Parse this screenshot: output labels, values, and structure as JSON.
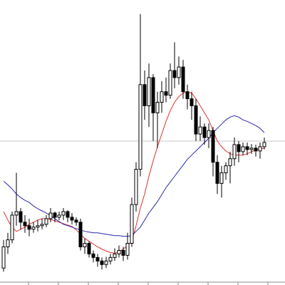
{
  "chart_data": {
    "type": "candlestick",
    "ylim": [
      0,
      400
    ],
    "hline": 200,
    "hline_color": "#c8c8c8",
    "up_color": "#ffffff",
    "down_color": "#000000",
    "wick_color": "#000000",
    "ohlc": [
      [
        20,
        60,
        15,
        50
      ],
      [
        50,
        70,
        40,
        60
      ],
      [
        60,
        100,
        55,
        95
      ],
      [
        95,
        155,
        80,
        100
      ],
      [
        100,
        105,
        75,
        85
      ],
      [
        85,
        95,
        70,
        80
      ],
      [
        80,
        90,
        65,
        75
      ],
      [
        75,
        85,
        70,
        78
      ],
      [
        78,
        88,
        72,
        80
      ],
      [
        80,
        90,
        75,
        82
      ],
      [
        82,
        95,
        78,
        90
      ],
      [
        90,
        105,
        85,
        98
      ],
      [
        98,
        100,
        85,
        92
      ],
      [
        92,
        100,
        88,
        95
      ],
      [
        95,
        105,
        88,
        100
      ],
      [
        100,
        102,
        85,
        92
      ],
      [
        92,
        98,
        82,
        88
      ],
      [
        88,
        92,
        80,
        85
      ],
      [
        85,
        90,
        45,
        50
      ],
      [
        50,
        62,
        40,
        55
      ],
      [
        55,
        58,
        35,
        40
      ],
      [
        40,
        45,
        28,
        35
      ],
      [
        35,
        40,
        22,
        30
      ],
      [
        30,
        35,
        18,
        25
      ],
      [
        25,
        36,
        20,
        30
      ],
      [
        30,
        40,
        25,
        35
      ],
      [
        35,
        48,
        30,
        40
      ],
      [
        40,
        52,
        35,
        45
      ],
      [
        45,
        50,
        30,
        38
      ],
      [
        38,
        70,
        32,
        55
      ],
      [
        55,
        120,
        50,
        110
      ],
      [
        110,
        170,
        100,
        160
      ],
      [
        160,
        380,
        150,
        280
      ],
      [
        280,
        300,
        230,
        250
      ],
      [
        250,
        310,
        220,
        290
      ],
      [
        290,
        295,
        200,
        240
      ],
      [
        240,
        270,
        190,
        255
      ],
      [
        255,
        285,
        240,
        270
      ],
      [
        270,
        290,
        255,
        265
      ],
      [
        265,
        310,
        260,
        300
      ],
      [
        300,
        340,
        275,
        290
      ],
      [
        290,
        320,
        280,
        305
      ],
      [
        305,
        315,
        260,
        270
      ],
      [
        270,
        280,
        245,
        260
      ],
      [
        260,
        270,
        230,
        250
      ],
      [
        250,
        260,
        200,
        210
      ],
      [
        210,
        235,
        200,
        220
      ],
      [
        220,
        225,
        195,
        205
      ],
      [
        205,
        225,
        190,
        215
      ],
      [
        215,
        220,
        150,
        170
      ],
      [
        170,
        180,
        125,
        140
      ],
      [
        140,
        165,
        120,
        155
      ],
      [
        155,
        170,
        145,
        165
      ],
      [
        165,
        185,
        140,
        175
      ],
      [
        175,
        205,
        165,
        195
      ],
      [
        195,
        200,
        170,
        185
      ],
      [
        185,
        198,
        180,
        192
      ],
      [
        192,
        198,
        180,
        188
      ],
      [
        188,
        196,
        182,
        190
      ],
      [
        190,
        195,
        178,
        186
      ],
      [
        186,
        198,
        175,
        192
      ],
      [
        192,
        205,
        188,
        198
      ]
    ],
    "series": [
      {
        "color": "#e03030",
        "values": [
          100,
          88,
          78,
          72,
          75,
          78,
          82,
          85,
          88,
          90,
          90,
          89,
          87,
          85,
          83,
          81,
          79,
          74,
          68,
          62,
          58,
          54,
          50,
          47,
          44,
          42,
          41,
          43,
          47,
          52,
          58,
          80,
          105,
          125,
          150,
          172,
          192,
          210,
          228,
          243,
          255,
          263,
          268,
          270,
          268,
          260,
          250,
          240,
          230,
          215,
          200,
          192,
          186,
          182,
          180,
          180,
          180,
          182,
          185,
          187,
          189,
          190
        ]
      },
      {
        "color": "#2a2aa8",
        "values": [
          143,
          138,
          132,
          125,
          120,
          116,
          113,
          108,
          104,
          101,
          98,
          94,
          90,
          86,
          82,
          80,
          78,
          76,
          74,
          72,
          71,
          70,
          70,
          69,
          68,
          67,
          66,
          66,
          65,
          65,
          66,
          72,
          78,
          88,
          98,
          106,
          114,
          124,
          134,
          142,
          150,
          158,
          166,
          174,
          180,
          186,
          192,
          198,
          204,
          212,
          218,
          224,
          230,
          234,
          236,
          234,
          230,
          228,
          225,
          222,
          218,
          212
        ]
      }
    ]
  }
}
